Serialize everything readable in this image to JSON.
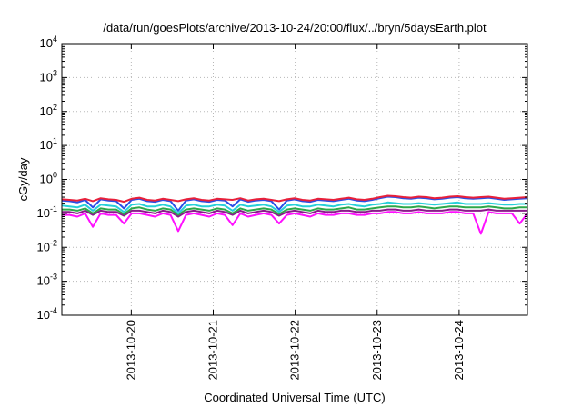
{
  "chart_data": {
    "type": "line",
    "title": "/data/run/goesPlots/archive/2013-10-24/20:00/flux/../bryn/5daysEarth.plot",
    "xlabel": "Coordinated Universal Time (UTC)",
    "ylabel": "cGy/day",
    "yscale": "log",
    "ylim": [
      0.0001,
      10000
    ],
    "xlim": [
      "2013-10-19T03:40",
      "2013-10-24T20:00"
    ],
    "y_ticks": [
      {
        "base": "10",
        "exp": "-4",
        "value": 0.0001
      },
      {
        "base": "10",
        "exp": "-3",
        "value": 0.001
      },
      {
        "base": "10",
        "exp": "-2",
        "value": 0.01
      },
      {
        "base": "10",
        "exp": "-1",
        "value": 0.1
      },
      {
        "base": "10",
        "exp": "0",
        "value": 1
      },
      {
        "base": "10",
        "exp": "1",
        "value": 10
      },
      {
        "base": "10",
        "exp": "2",
        "value": 100
      },
      {
        "base": "10",
        "exp": "3",
        "value": 1000
      },
      {
        "base": "10",
        "exp": "4",
        "value": 10000
      }
    ],
    "x_ticks": [
      "2013-10-20",
      "2013-10-21",
      "2013-10-22",
      "2013-10-23",
      "2013-10-24"
    ],
    "grid": true,
    "legend": "none",
    "series": [
      {
        "color": "#e8203a",
        "values": [
          0.26,
          0.25,
          0.24,
          0.27,
          0.23,
          0.28,
          0.26,
          0.25,
          0.22,
          0.27,
          0.29,
          0.25,
          0.24,
          0.27,
          0.25,
          0.23,
          0.26,
          0.28,
          0.25,
          0.24,
          0.27,
          0.26,
          0.25,
          0.28,
          0.24,
          0.26,
          0.27,
          0.25,
          0.23,
          0.26,
          0.28,
          0.25,
          0.24,
          0.27,
          0.26,
          0.25,
          0.27,
          0.29,
          0.26,
          0.25,
          0.27,
          0.3,
          0.33,
          0.32,
          0.3,
          0.29,
          0.31,
          0.3,
          0.28,
          0.29,
          0.31,
          0.32,
          0.3,
          0.29,
          0.3,
          0.31,
          0.29,
          0.27,
          0.28,
          0.29,
          0.3
        ]
      },
      {
        "color": "#2a4ee6",
        "values": [
          0.24,
          0.23,
          0.21,
          0.25,
          0.15,
          0.26,
          0.24,
          0.23,
          0.14,
          0.25,
          0.27,
          0.23,
          0.22,
          0.25,
          0.23,
          0.12,
          0.24,
          0.26,
          0.23,
          0.22,
          0.25,
          0.24,
          0.16,
          0.26,
          0.22,
          0.24,
          0.25,
          0.23,
          0.13,
          0.24,
          0.26,
          0.23,
          0.22,
          0.25,
          0.24,
          0.23,
          0.25,
          0.27,
          0.24,
          0.23,
          0.25,
          0.28,
          0.31,
          0.3,
          0.28,
          0.27,
          0.29,
          0.28,
          0.26,
          0.27,
          0.29,
          0.3,
          0.28,
          0.27,
          0.28,
          0.29,
          0.27,
          0.25,
          0.26,
          0.27,
          0.28
        ]
      },
      {
        "color": "#26d0d8",
        "values": [
          0.17,
          0.16,
          0.15,
          0.18,
          0.12,
          0.18,
          0.17,
          0.16,
          0.11,
          0.18,
          0.19,
          0.16,
          0.16,
          0.18,
          0.16,
          0.1,
          0.17,
          0.18,
          0.16,
          0.16,
          0.18,
          0.17,
          0.12,
          0.18,
          0.16,
          0.17,
          0.18,
          0.16,
          0.11,
          0.17,
          0.18,
          0.16,
          0.16,
          0.18,
          0.17,
          0.16,
          0.18,
          0.19,
          0.17,
          0.16,
          0.18,
          0.19,
          0.21,
          0.2,
          0.19,
          0.19,
          0.2,
          0.19,
          0.18,
          0.19,
          0.2,
          0.21,
          0.19,
          0.19,
          0.19,
          0.2,
          0.19,
          0.18,
          0.18,
          0.19,
          0.19
        ]
      },
      {
        "color": "#2ea84a",
        "values": [
          0.13,
          0.13,
          0.12,
          0.14,
          0.1,
          0.14,
          0.13,
          0.13,
          0.095,
          0.14,
          0.15,
          0.13,
          0.12,
          0.14,
          0.13,
          0.09,
          0.13,
          0.14,
          0.13,
          0.12,
          0.14,
          0.13,
          0.1,
          0.14,
          0.12,
          0.13,
          0.14,
          0.13,
          0.095,
          0.13,
          0.14,
          0.13,
          0.12,
          0.14,
          0.13,
          0.13,
          0.14,
          0.15,
          0.13,
          0.13,
          0.14,
          0.15,
          0.16,
          0.16,
          0.15,
          0.15,
          0.16,
          0.15,
          0.14,
          0.15,
          0.16,
          0.16,
          0.15,
          0.15,
          0.15,
          0.16,
          0.15,
          0.14,
          0.14,
          0.15,
          0.15
        ]
      },
      {
        "color": "#8a1a8a",
        "values": [
          0.11,
          0.11,
          0.1,
          0.12,
          0.09,
          0.12,
          0.11,
          0.11,
          0.085,
          0.12,
          0.12,
          0.11,
          0.1,
          0.12,
          0.11,
          0.08,
          0.11,
          0.12,
          0.11,
          0.1,
          0.12,
          0.11,
          0.09,
          0.12,
          0.1,
          0.11,
          0.12,
          0.11,
          0.085,
          0.11,
          0.12,
          0.11,
          0.1,
          0.12,
          0.11,
          0.11,
          0.12,
          0.12,
          0.11,
          0.11,
          0.12,
          0.12,
          0.13,
          0.13,
          0.12,
          0.12,
          0.13,
          0.12,
          0.12,
          0.12,
          0.13,
          0.13,
          0.12,
          0.12,
          0.12,
          0.13,
          0.12,
          0.12,
          0.12,
          0.12,
          0.12
        ]
      },
      {
        "color": "#ff10ff",
        "values": [
          0.09,
          0.09,
          0.08,
          0.1,
          0.04,
          0.1,
          0.09,
          0.09,
          0.05,
          0.1,
          0.1,
          0.09,
          0.08,
          0.1,
          0.09,
          0.03,
          0.09,
          0.1,
          0.09,
          0.08,
          0.1,
          0.09,
          0.045,
          0.1,
          0.08,
          0.09,
          0.1,
          0.09,
          0.05,
          0.09,
          0.1,
          0.09,
          0.08,
          0.1,
          0.09,
          0.09,
          0.1,
          0.1,
          0.09,
          0.09,
          0.1,
          0.1,
          0.11,
          0.11,
          0.1,
          0.1,
          0.11,
          0.1,
          0.1,
          0.1,
          0.11,
          0.11,
          0.1,
          0.1,
          0.025,
          0.11,
          0.1,
          0.1,
          0.1,
          0.05,
          0.1
        ]
      }
    ]
  }
}
